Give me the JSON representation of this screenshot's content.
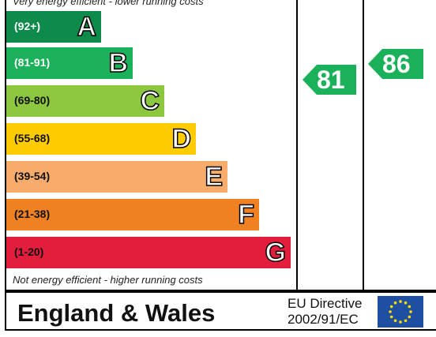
{
  "top_caption": "Very energy efficient - lower running costs",
  "bottom_caption": "Not energy efficient - higher running costs",
  "chart_data": {
    "type": "bar",
    "bands": [
      {
        "range": "(92+)",
        "letter": "A",
        "color": "#0e8a4a",
        "text_color": "#ffffff"
      },
      {
        "range": "(81-91)",
        "letter": "B",
        "color": "#1bb15a",
        "text_color": "#ffffff"
      },
      {
        "range": "(69-80)",
        "letter": "C",
        "color": "#8dc63f",
        "text_color": "#111111"
      },
      {
        "range": "(55-68)",
        "letter": "D",
        "color": "#ffcc00",
        "text_color": "#111111"
      },
      {
        "range": "(39-54)",
        "letter": "E",
        "color": "#f7ac6b",
        "text_color": "#111111"
      },
      {
        "range": "(21-38)",
        "letter": "F",
        "color": "#f08123",
        "text_color": "#111111"
      },
      {
        "range": "(1-20)",
        "letter": "G",
        "color": "#e31d3c",
        "text_color": "#111111"
      }
    ],
    "current": {
      "value": 81,
      "color": "#1bb15a"
    },
    "potential": {
      "value": 86,
      "color": "#1bb15a"
    }
  },
  "footer": {
    "region": "England & Wales",
    "directive_line1": "EU Directive",
    "directive_line2": "2002/91/EC"
  }
}
